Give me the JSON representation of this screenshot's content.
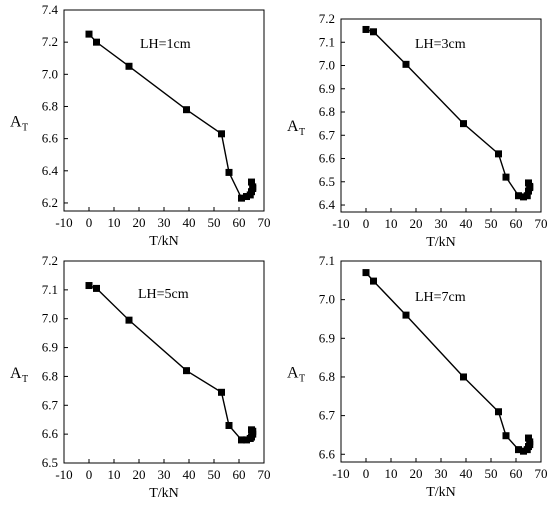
{
  "chart_data": [
    {
      "type": "line",
      "title": "",
      "annotation": "LH=1cm",
      "xlabel": "T/kN",
      "ylabel_main": "A",
      "ylabel_sub": "T",
      "xlim": [
        -10,
        70
      ],
      "xticks": [
        -10,
        0,
        10,
        20,
        30,
        40,
        50,
        60,
        70
      ],
      "xtick_labels": [
        "-10",
        "0",
        "10",
        "20",
        "30",
        "40",
        "50",
        "60",
        "70"
      ],
      "ylim": [
        6.15,
        7.4
      ],
      "yticks": [
        6.2,
        6.4,
        6.6,
        6.8,
        7.0,
        7.2,
        7.4
      ],
      "ytick_labels": [
        "6.2",
        "6.4",
        "6.6",
        "6.8",
        "7.0",
        "7.2",
        "7.4"
      ],
      "grid": false,
      "series": [
        {
          "x": [
            0,
            3,
            16,
            39,
            53,
            56,
            61,
            63,
            64.5,
            65,
            65.5,
            65.5,
            65
          ],
          "y": [
            7.25,
            7.2,
            7.05,
            6.78,
            6.63,
            6.39,
            6.23,
            6.24,
            6.25,
            6.27,
            6.29,
            6.3,
            6.33
          ]
        }
      ]
    },
    {
      "type": "line",
      "title": "",
      "annotation": "LH=3cm",
      "xlabel": "T/kN",
      "ylabel_main": "A",
      "ylabel_sub": "T",
      "xlim": [
        -10,
        70
      ],
      "xticks": [
        -10,
        0,
        10,
        20,
        30,
        40,
        50,
        60,
        70
      ],
      "xtick_labels": [
        "-10",
        "0",
        "10",
        "20",
        "30",
        "40",
        "50",
        "60",
        "70"
      ],
      "ylim": [
        6.37,
        7.2
      ],
      "yticks": [
        6.4,
        6.5,
        6.6,
        6.7,
        6.8,
        6.9,
        7.0,
        7.1,
        7.2
      ],
      "ytick_labels": [
        "6.4",
        "6.5",
        "6.6",
        "6.7",
        "6.8",
        "6.9",
        "7.0",
        "7.1",
        "7.2"
      ],
      "grid": false,
      "series": [
        {
          "x": [
            0,
            3,
            16,
            39,
            53,
            56,
            61,
            63,
            64.5,
            65,
            65.5,
            65.5,
            65
          ],
          "y": [
            7.155,
            7.145,
            7.005,
            6.75,
            6.62,
            6.52,
            6.44,
            6.435,
            6.44,
            6.46,
            6.475,
            6.48,
            6.495
          ]
        }
      ]
    },
    {
      "type": "line",
      "title": "",
      "annotation": "LH=5cm",
      "xlabel": "T/kN",
      "ylabel_main": "A",
      "ylabel_sub": "T",
      "xlim": [
        -10,
        70
      ],
      "xticks": [
        -10,
        0,
        10,
        20,
        30,
        40,
        50,
        60,
        70
      ],
      "xtick_labels": [
        "-10",
        "0",
        "10",
        "20",
        "30",
        "40",
        "50",
        "60",
        "70"
      ],
      "ylim": [
        6.5,
        7.2
      ],
      "yticks": [
        6.5,
        6.6,
        6.7,
        6.8,
        6.9,
        7.0,
        7.1,
        7.2
      ],
      "ytick_labels": [
        "6.5",
        "6.6",
        "6.7",
        "6.8",
        "6.9",
        "7.0",
        "7.1",
        "7.2"
      ],
      "grid": false,
      "series": [
        {
          "x": [
            0,
            3,
            16,
            39,
            53,
            56,
            61,
            63,
            64.5,
            65,
            65.5,
            65.5,
            65
          ],
          "y": [
            7.115,
            7.105,
            6.995,
            6.82,
            6.745,
            6.63,
            6.58,
            6.58,
            6.585,
            6.59,
            6.6,
            6.61,
            6.615
          ]
        }
      ]
    },
    {
      "type": "line",
      "title": "",
      "annotation": "LH=7cm",
      "xlabel": "T/kN",
      "ylabel_main": "A",
      "ylabel_sub": "T",
      "xlim": [
        -10,
        70
      ],
      "xticks": [
        -10,
        0,
        10,
        20,
        30,
        40,
        50,
        60,
        70
      ],
      "xtick_labels": [
        "-10",
        "0",
        "10",
        "20",
        "30",
        "40",
        "50",
        "60",
        "70"
      ],
      "ylim": [
        6.58,
        7.1
      ],
      "yticks": [
        6.6,
        6.7,
        6.8,
        6.9,
        7.0,
        7.1
      ],
      "ytick_labels": [
        "6.6",
        "6.7",
        "6.8",
        "6.9",
        "7.0",
        "7.1"
      ],
      "grid": false,
      "series": [
        {
          "x": [
            0,
            3,
            16,
            39,
            53,
            56,
            61,
            63,
            64.5,
            65,
            65.5,
            65.5,
            65
          ],
          "y": [
            7.07,
            7.048,
            6.96,
            6.8,
            6.71,
            6.648,
            6.612,
            6.608,
            6.612,
            6.62,
            6.625,
            6.632,
            6.642
          ]
        }
      ]
    }
  ]
}
